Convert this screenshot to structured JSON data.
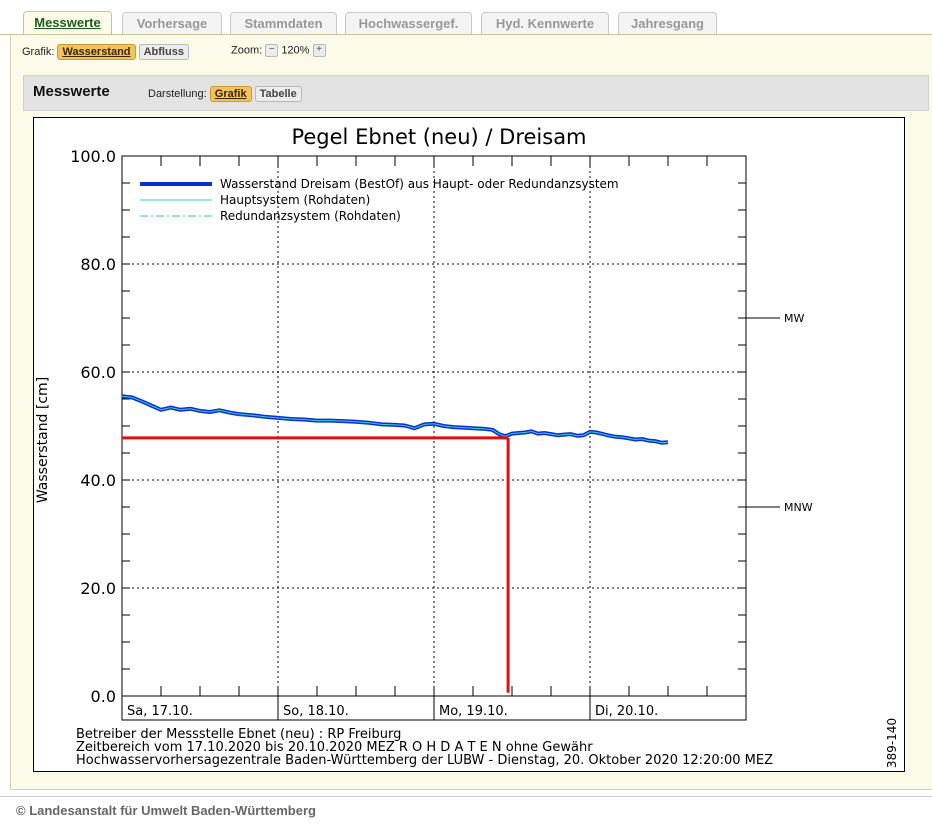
{
  "tabs": [
    {
      "label": "Messwerte",
      "active": true
    },
    {
      "label": "Vorhersage",
      "active": false
    },
    {
      "label": "Stammdaten",
      "active": false
    },
    {
      "label": "Hochwassergef.",
      "active": false
    },
    {
      "label": "Hyd. Kennwerte",
      "active": false
    },
    {
      "label": "Jahresgang",
      "active": false
    }
  ],
  "toolbar": {
    "grafik_label": "Grafik:",
    "wasserstand_label": "Wasserstand",
    "abfluss_label": "Abfluss",
    "zoom_label": "Zoom:",
    "zoom_minus": "−",
    "zoom_value": "120%",
    "zoom_plus": "+"
  },
  "section": {
    "title": "Messwerte",
    "darstellung_label": "Darstellung:",
    "grafik_label": "Grafik",
    "tabelle_label": "Tabelle"
  },
  "chart_data": {
    "type": "line",
    "title": "Pegel Ebnet (neu) / Dreisam",
    "ylabel": "Wasserstand [cm]",
    "ylim": [
      0,
      100
    ],
    "yticks": [
      "0.0",
      "20.0",
      "40.0",
      "60.0",
      "80.0",
      "100.0"
    ],
    "xlim": [
      0,
      96
    ],
    "xticks": [
      {
        "x": 0,
        "label": "Sa, 17.10."
      },
      {
        "x": 24,
        "label": "So, 18.10."
      },
      {
        "x": 48,
        "label": "Mo, 19.10."
      },
      {
        "x": 72,
        "label": "Di, 20.10."
      }
    ],
    "grid": true,
    "legend_position": "top-left",
    "series": [
      {
        "name": "Wasserstand Dreisam (BestOf)   aus Haupt- oder Redundanzsystem",
        "color": "#0a2fd6",
        "style": "thick",
        "x": [
          0,
          1.5,
          3,
          4.5,
          6,
          7.5,
          9,
          10.5,
          12,
          13.5,
          15,
          16.5,
          18,
          20,
          22,
          24,
          26,
          28,
          30,
          32,
          34,
          36,
          38,
          40,
          42,
          43.5,
          45,
          46.5,
          48,
          49.5,
          51,
          52.5,
          54,
          55.5,
          57,
          58,
          59,
          60,
          61,
          62,
          63,
          64,
          65,
          66,
          67,
          68,
          69,
          70,
          71,
          72,
          73,
          74,
          75,
          76,
          77,
          78,
          79,
          80,
          81,
          82,
          83,
          84
        ],
        "y": [
          55.5,
          55.3,
          54.6,
          53.8,
          53.0,
          53.4,
          53.0,
          53.2,
          52.8,
          52.6,
          52.9,
          52.5,
          52.2,
          52.0,
          51.7,
          51.5,
          51.3,
          51.2,
          51.0,
          51.0,
          50.9,
          50.8,
          50.6,
          50.3,
          50.2,
          50.1,
          49.6,
          50.3,
          50.4,
          50.0,
          49.8,
          49.7,
          49.6,
          49.5,
          49.3,
          48.5,
          48.1,
          48.6,
          48.7,
          48.8,
          49.0,
          48.6,
          48.7,
          48.5,
          48.3,
          48.4,
          48.5,
          48.2,
          48.3,
          48.9,
          48.8,
          48.5,
          48.2,
          48.0,
          47.9,
          47.7,
          47.5,
          47.6,
          47.3,
          47.2,
          46.9,
          47.0
        ]
      },
      {
        "name": "Hauptsystem (Rohdaten)",
        "color": "#33d1d1",
        "style": "solid"
      },
      {
        "name": "Redundanzsystem (Rohdaten)",
        "color": "#33c7c7",
        "style": "dashdot"
      }
    ],
    "marker_line": {
      "color": "#e11010",
      "value_y": 47.8,
      "time_x": 59.4
    },
    "reference_levels": [
      {
        "label": "MW",
        "value": 70
      },
      {
        "label": "MNW",
        "value": 35
      }
    ],
    "footer_lines": [
      "Betreiber der Messstelle Ebnet (neu) : RP Freiburg",
      "Zeitbereich vom 17.10.2020 bis 20.10.2020    MEZ     R O H D A T E N ohne Gewähr",
      "Hochwasservorhersagezentrale Baden-Württemberg der LUBW - Dienstag, 20. Oktober 2020 12:20:00 MEZ"
    ],
    "side_code": "389-140"
  },
  "page_footer": "© Landesanstalt für Umwelt Baden-Württemberg"
}
